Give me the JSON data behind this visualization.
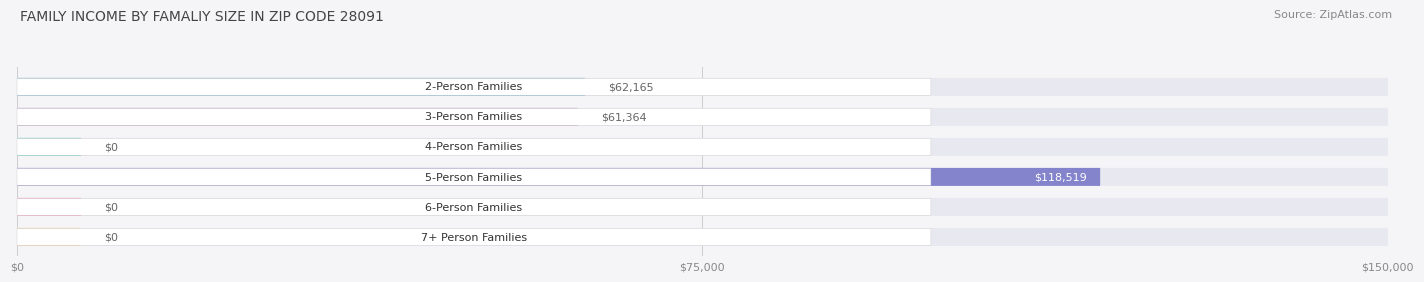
{
  "title": "FAMILY INCOME BY FAMALIY SIZE IN ZIP CODE 28091",
  "source": "Source: ZipAtlas.com",
  "categories": [
    "2-Person Families",
    "3-Person Families",
    "4-Person Families",
    "5-Person Families",
    "6-Person Families",
    "7+ Person Families"
  ],
  "values": [
    62165,
    61364,
    0,
    118519,
    0,
    0
  ],
  "bar_colors": [
    "#7bafd4",
    "#b89cc8",
    "#5dc8b8",
    "#8484cc",
    "#f48aab",
    "#f5c891"
  ],
  "bar_bg_color": "#e8e8f0",
  "xlim": [
    0,
    150000
  ],
  "xtick_labels": [
    "$0",
    "$75,000",
    "$150,000"
  ],
  "xtick_vals": [
    0,
    75000,
    150000
  ],
  "title_fontsize": 10,
  "source_fontsize": 8,
  "tick_fontsize": 8,
  "bar_label_fontsize": 8,
  "cat_label_fontsize": 8,
  "figure_bg": "#f5f5f8",
  "bar_height": 0.6,
  "value_labels": [
    "$62,165",
    "$61,364",
    "$0",
    "$118,519",
    "$0",
    "$0"
  ],
  "value_label_inside": [
    false,
    false,
    false,
    true,
    false,
    false
  ],
  "zero_stub": 7000
}
